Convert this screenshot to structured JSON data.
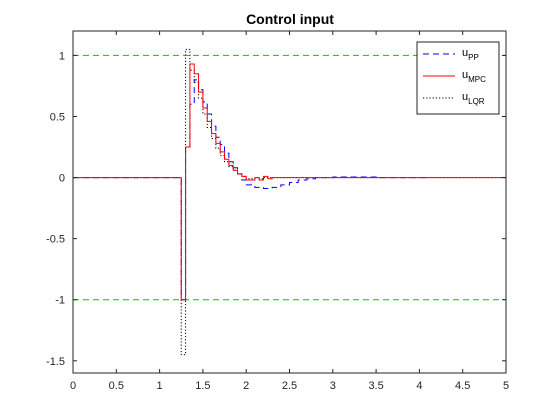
{
  "chart_data": {
    "type": "line",
    "title": "Control input",
    "xlabel": "",
    "ylabel": "",
    "xlim": [
      0,
      5
    ],
    "ylim": [
      -1.6,
      1.2
    ],
    "xticks": [
      0,
      0.5,
      1,
      1.5,
      2,
      2.5,
      3,
      3.5,
      4,
      4.5,
      5
    ],
    "xtick_labels": [
      "0",
      "0.5",
      "1",
      "1.5",
      "2",
      "2.5",
      "3",
      "3.5",
      "4",
      "4.5",
      "5"
    ],
    "yticks": [
      -1.5,
      -1,
      -0.5,
      0,
      0.5,
      1
    ],
    "ytick_labels": [
      "-1.5",
      "-1",
      "-0.5",
      "0",
      "0.5",
      "1"
    ],
    "grid": false,
    "legend_position": "top-right",
    "reference_lines": [
      {
        "y": 1,
        "color": "#00cc00",
        "style": "dashed"
      },
      {
        "y": -1,
        "color": "#00cc00",
        "style": "dashed"
      }
    ],
    "series": [
      {
        "name": "u",
        "subscript": "PP",
        "color": "#0000ff",
        "style": "dashed",
        "step": true,
        "x": [
          0,
          1.25,
          1.3,
          1.35,
          1.4,
          1.45,
          1.5,
          1.55,
          1.6,
          1.65,
          1.7,
          1.75,
          1.8,
          1.85,
          1.9,
          1.95,
          2.0,
          2.1,
          2.2,
          2.3,
          2.4,
          2.5,
          2.6,
          2.7,
          2.8,
          3.0,
          3.5,
          4.1
        ],
        "y": [
          0,
          -1,
          0.25,
          0.6,
          0.8,
          0.72,
          0.62,
          0.52,
          0.42,
          0.33,
          0.27,
          0.2,
          0.13,
          0.08,
          0.03,
          -0.02,
          -0.06,
          -0.08,
          -0.09,
          -0.08,
          -0.06,
          -0.04,
          -0.02,
          -0.01,
          0,
          0.005,
          0,
          0
        ]
      },
      {
        "name": "u",
        "subscript": "MPC",
        "color": "#ff0000",
        "style": "solid",
        "step": true,
        "x": [
          0,
          1.25,
          1.3,
          1.35,
          1.4,
          1.45,
          1.5,
          1.55,
          1.6,
          1.65,
          1.7,
          1.75,
          1.8,
          1.85,
          1.9,
          1.95,
          2.0,
          2.05,
          2.1,
          2.15,
          2.2,
          2.25,
          2.3,
          2.4,
          5.0
        ],
        "y": [
          0,
          -1,
          0.25,
          0.93,
          0.85,
          0.7,
          0.57,
          0.46,
          0.36,
          0.28,
          0.21,
          0.15,
          0.1,
          0.06,
          0.03,
          0.01,
          -0.02,
          -0.02,
          0,
          -0.02,
          0.01,
          -0.01,
          0,
          0,
          0
        ]
      },
      {
        "name": "u",
        "subscript": "LQR",
        "color": "#000000",
        "style": "dotted",
        "step": true,
        "x": [
          0,
          1.25,
          1.3,
          1.35,
          1.4,
          1.45,
          1.5,
          1.55,
          1.6,
          1.65,
          1.7,
          1.75,
          1.8,
          1.85,
          1.9,
          1.95,
          2.0,
          2.05,
          2.1,
          2.15,
          2.2,
          2.3,
          5.0
        ],
        "y": [
          0,
          -1.45,
          1.05,
          0.88,
          0.78,
          0.65,
          0.52,
          0.41,
          0.32,
          0.24,
          0.18,
          0.13,
          0.09,
          0.06,
          0.03,
          0.01,
          -0.01,
          -0.01,
          0,
          -0.01,
          0,
          0,
          0
        ]
      }
    ]
  }
}
